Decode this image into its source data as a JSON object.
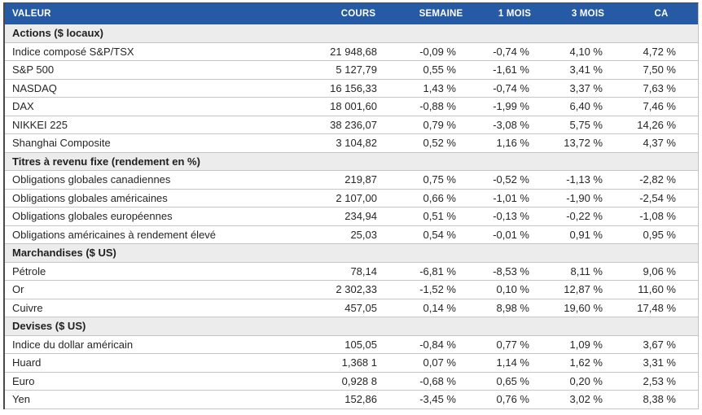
{
  "table": {
    "columns": [
      "VALEUR",
      "COURS",
      "SEMAINE",
      "1 MOIS",
      "3 MOIS",
      "CA"
    ],
    "sections": [
      {
        "label": "Actions ($ locaux)",
        "rows": [
          {
            "name": "Indice composé S&P/TSX",
            "cours": "21 948,68",
            "pct": [
              "-0,09 %",
              "-0,74 %",
              "4,10 %",
              "4,72 %"
            ]
          },
          {
            "name": "S&P 500",
            "cours": "5 127,79",
            "pct": [
              "0,55 %",
              "-1,61 %",
              "3,41 %",
              "7,50 %"
            ]
          },
          {
            "name": "NASDAQ",
            "cours": "16 156,33",
            "pct": [
              "1,43 %",
              "-0,74 %",
              "3,37 %",
              "7,63 %"
            ]
          },
          {
            "name": "DAX",
            "cours": "18 001,60",
            "pct": [
              "-0,88 %",
              "-1,99 %",
              "6,40 %",
              "7,46 %"
            ]
          },
          {
            "name": "NIKKEI 225",
            "cours": "38 236,07",
            "pct": [
              "0,79 %",
              "-3,08 %",
              "5,75 %",
              "14,26 %"
            ]
          },
          {
            "name": "Shanghai Composite",
            "cours": "3 104,82",
            "pct": [
              "0,52 %",
              "1,16 %",
              "13,72 %",
              "4,37 %"
            ]
          }
        ]
      },
      {
        "label": "Titres à revenu fixe (rendement en %)",
        "rows": [
          {
            "name": "Obligations globales canadiennes",
            "cours": "219,87",
            "pct": [
              "0,75 %",
              "-0,52 %",
              "-1,13 %",
              "-2,82 %"
            ]
          },
          {
            "name": "Obligations globales américaines",
            "cours": "2 107,00",
            "pct": [
              "0,66 %",
              "-1,01 %",
              "-1,90 %",
              "-2,54 %"
            ]
          },
          {
            "name": "Obligations globales européennes",
            "cours": "234,94",
            "pct": [
              "0,51 %",
              "-0,13 %",
              "-0,22 %",
              "-1,08 %"
            ]
          },
          {
            "name": "Obligations américaines à rendement élevé",
            "cours": "25,03",
            "pct": [
              "0,54 %",
              "-0,01 %",
              "0,91 %",
              "0,95 %"
            ]
          }
        ]
      },
      {
        "label": "Marchandises ($ US)",
        "rows": [
          {
            "name": "Pétrole",
            "cours": "78,14",
            "pct": [
              "-6,81 %",
              "-8,53 %",
              "8,11 %",
              "9,06 %"
            ]
          },
          {
            "name": "Or",
            "cours": "2 302,33",
            "pct": [
              "-1,52 %",
              "0,10 %",
              "12,87 %",
              "11,60 %"
            ]
          },
          {
            "name": "Cuivre",
            "cours": "457,05",
            "pct": [
              "0,14 %",
              "8,98 %",
              "19,60 %",
              "17,48 %"
            ]
          }
        ]
      },
      {
        "label": "Devises ($ US)",
        "rows": [
          {
            "name": "Indice du dollar américain",
            "cours": "105,05",
            "pct": [
              "-0,84 %",
              "0,77 %",
              "1,09 %",
              "3,67 %"
            ]
          },
          {
            "name": "Huard",
            "cours": "1,368 1",
            "pct": [
              "0,07 %",
              "1,14 %",
              "1,62 %",
              "3,31 %"
            ]
          },
          {
            "name": "Euro",
            "cours": "0,928 8",
            "pct": [
              "-0,68 %",
              "0,65 %",
              "0,20 %",
              "2,53 %"
            ]
          },
          {
            "name": "Yen",
            "cours": "152,86",
            "pct": [
              "-3,45 %",
              "0,76 %",
              "3,02 %",
              "8,38 %"
            ]
          }
        ]
      }
    ]
  },
  "colors": {
    "header_background": "#265aa5",
    "header_text": "#ffffff",
    "section_background": "#ececec",
    "positive": "#17a45e",
    "negative": "#ed1c2e",
    "grid_line": "#c6c6c6",
    "text": "#262626"
  }
}
